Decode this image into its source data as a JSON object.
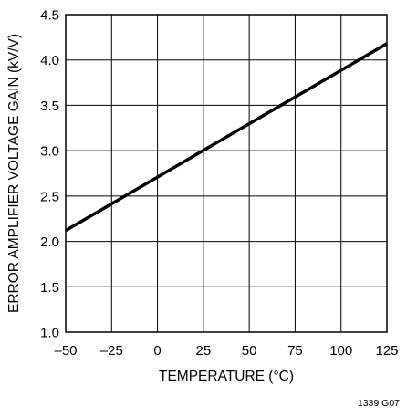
{
  "chart_data": {
    "type": "line",
    "xlabel": "TEMPERATURE (°C)",
    "ylabel": "ERROR AMPLIFIER VOLTAGE GAIN (kV/V)",
    "xlim": [
      -50,
      125
    ],
    "ylim": [
      1.0,
      4.5
    ],
    "x_ticks": [
      "–50",
      "–25",
      "0",
      "25",
      "50",
      "75",
      "100",
      "125"
    ],
    "y_ticks": [
      "1.0",
      "1.5",
      "2.0",
      "2.5",
      "3.0",
      "3.5",
      "4.0",
      "4.5"
    ],
    "grid": true,
    "series": [
      {
        "x": [
          -50,
          125
        ],
        "y": [
          2.12,
          4.18
        ]
      }
    ],
    "line_color": "#000000",
    "figure_code": "1339 G07"
  }
}
